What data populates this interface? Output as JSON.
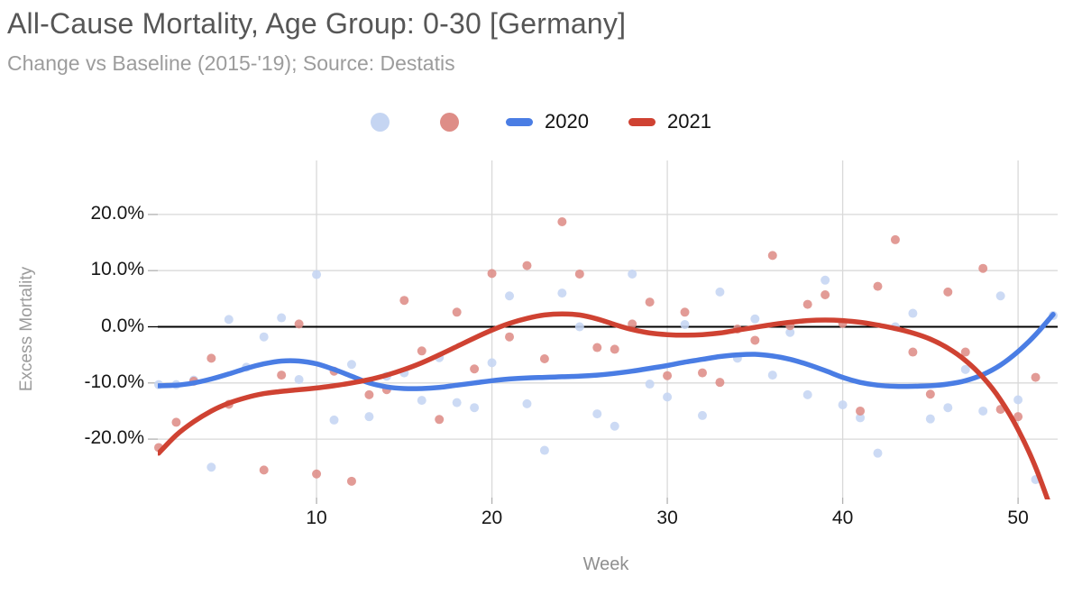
{
  "header": {
    "title": "All-Cause Mortality, Age Group: 0-30 [Germany]",
    "subtitle": "Change vs Baseline (2015-'19); Source: Destatis"
  },
  "legend": {
    "items": [
      {
        "id": "scatter-2020",
        "swatch": "dot",
        "color": "#c5d5f2",
        "label": ""
      },
      {
        "id": "scatter-2021",
        "swatch": "dot",
        "color": "#de8d87",
        "label": ""
      },
      {
        "id": "line-2020",
        "swatch": "dash",
        "color": "#4a7de4",
        "label": "2020"
      },
      {
        "id": "line-2021",
        "swatch": "dash",
        "color": "#cf4232",
        "label": "2021"
      }
    ]
  },
  "colors": {
    "scatter_2020": "#c5d5f2",
    "scatter_2021": "#de8d87",
    "line_2020": "#4a7de4",
    "line_2021": "#cf4232",
    "gridline": "#d9d9d9",
    "zero_line": "#000000",
    "tick_mark": "#b0b0b0"
  },
  "chart_data": {
    "type": "scatter",
    "subtype": "scatter points with smoothed trend lines",
    "title": "All-Cause Mortality, Age Group: 0-30 [Germany]",
    "subtitle": "Change vs Baseline (2015-'19); Source: Destatis",
    "xlabel": "Week",
    "ylabel": "Excess Mortality",
    "xlim": [
      1,
      52
    ],
    "ylim_pct": [
      -30.5,
      29.5
    ],
    "grid": true,
    "zero_line": true,
    "legend_position": "top",
    "x_ticks": [
      10,
      20,
      30,
      40,
      50
    ],
    "y_ticks": [
      {
        "label": "20.0%",
        "value": 20
      },
      {
        "label": "10.0%",
        "value": 10
      },
      {
        "label": "0.0%",
        "value": 0
      },
      {
        "label": "-10.0%",
        "value": -10
      },
      {
        "label": "-20.0%",
        "value": -20
      }
    ],
    "weeks": [
      1,
      2,
      3,
      4,
      5,
      6,
      7,
      8,
      9,
      10,
      11,
      12,
      13,
      14,
      15,
      16,
      17,
      18,
      19,
      20,
      21,
      22,
      23,
      24,
      25,
      26,
      27,
      28,
      29,
      30,
      31,
      32,
      33,
      34,
      35,
      36,
      37,
      38,
      39,
      40,
      41,
      42,
      43,
      44,
      45,
      46,
      47,
      48,
      49,
      50,
      51,
      52
    ],
    "series": [
      {
        "name": "2020 weekly excess mortality (scatter, % vs baseline)",
        "kind": "scatter",
        "color": "#c5d5f2",
        "values": [
          -10.3,
          -10.3,
          -9.5,
          -25.0,
          1.3,
          -7.2,
          -1.8,
          1.6,
          -9.4,
          9.3,
          -16.6,
          -6.7,
          -16.0,
          -8.8,
          -8.2,
          -13.1,
          -5.5,
          -13.5,
          -14.4,
          -6.4,
          5.5,
          -13.7,
          -22.0,
          6.0,
          0.0,
          -15.5,
          -17.7,
          9.4,
          -10.2,
          -12.5,
          0.4,
          -15.8,
          6.2,
          -5.6,
          1.4,
          -8.6,
          -1.0,
          -12.1,
          8.3,
          -13.9,
          -16.2,
          -22.5,
          0.0,
          2.4,
          -16.4,
          -14.4,
          -7.6,
          -15.0,
          5.5,
          -13.0,
          -27.2,
          2.0
        ]
      },
      {
        "name": "2021 weekly excess mortality (scatter, % vs baseline)",
        "kind": "scatter",
        "color": "#de8d87",
        "values": [
          -21.5,
          -17.0,
          -9.7,
          -5.6,
          -13.8,
          null,
          -25.5,
          -8.6,
          0.5,
          -26.2,
          -7.9,
          -27.5,
          -12.1,
          -11.2,
          4.7,
          -4.3,
          -16.5,
          2.6,
          -7.5,
          9.5,
          -1.8,
          10.9,
          -5.7,
          18.7,
          9.4,
          -3.7,
          -4.0,
          0.5,
          4.4,
          -8.7,
          2.6,
          -8.2,
          -9.9,
          -0.4,
          -2.4,
          12.7,
          0.2,
          4.0,
          5.7,
          0.6,
          -15.0,
          7.2,
          15.5,
          -4.5,
          -12.0,
          6.2,
          -4.5,
          10.4,
          -14.7,
          -16.0,
          -9.0,
          null
        ]
      },
      {
        "name": "2020",
        "kind": "smooth-line",
        "color": "#4a7de4",
        "values": [
          -10.5,
          -10.4,
          -10.0,
          -9.3,
          -8.4,
          -7.4,
          -6.6,
          -6.1,
          -6.1,
          -6.6,
          -7.6,
          -8.8,
          -10.0,
          -10.7,
          -11.0,
          -11.0,
          -10.8,
          -10.4,
          -10.0,
          -9.6,
          -9.3,
          -9.1,
          -9.0,
          -8.9,
          -8.8,
          -8.6,
          -8.3,
          -7.9,
          -7.4,
          -6.9,
          -6.3,
          -5.8,
          -5.3,
          -5.0,
          -4.9,
          -5.2,
          -5.8,
          -6.7,
          -7.8,
          -9.0,
          -9.9,
          -10.4,
          -10.6,
          -10.6,
          -10.5,
          -10.2,
          -9.6,
          -8.5,
          -6.8,
          -4.4,
          -1.4,
          2.2
        ]
      },
      {
        "name": "2021",
        "kind": "smooth-line",
        "color": "#cf4232",
        "values": [
          -22.5,
          -19.3,
          -16.9,
          -15.0,
          -13.6,
          -12.6,
          -11.9,
          -11.5,
          -11.2,
          -10.9,
          -10.5,
          -10.0,
          -9.4,
          -8.6,
          -7.6,
          -6.4,
          -5.0,
          -3.5,
          -2.0,
          -0.6,
          0.6,
          1.5,
          2.1,
          2.3,
          2.1,
          1.4,
          0.4,
          -0.5,
          -1.1,
          -1.4,
          -1.5,
          -1.4,
          -1.1,
          -0.6,
          -0.1,
          0.4,
          0.8,
          1.1,
          1.2,
          1.1,
          0.8,
          0.3,
          -0.3,
          -1.1,
          -2.2,
          -3.8,
          -6.0,
          -9.0,
          -13.0,
          -18.3,
          -25.0,
          -33.5
        ]
      }
    ]
  }
}
